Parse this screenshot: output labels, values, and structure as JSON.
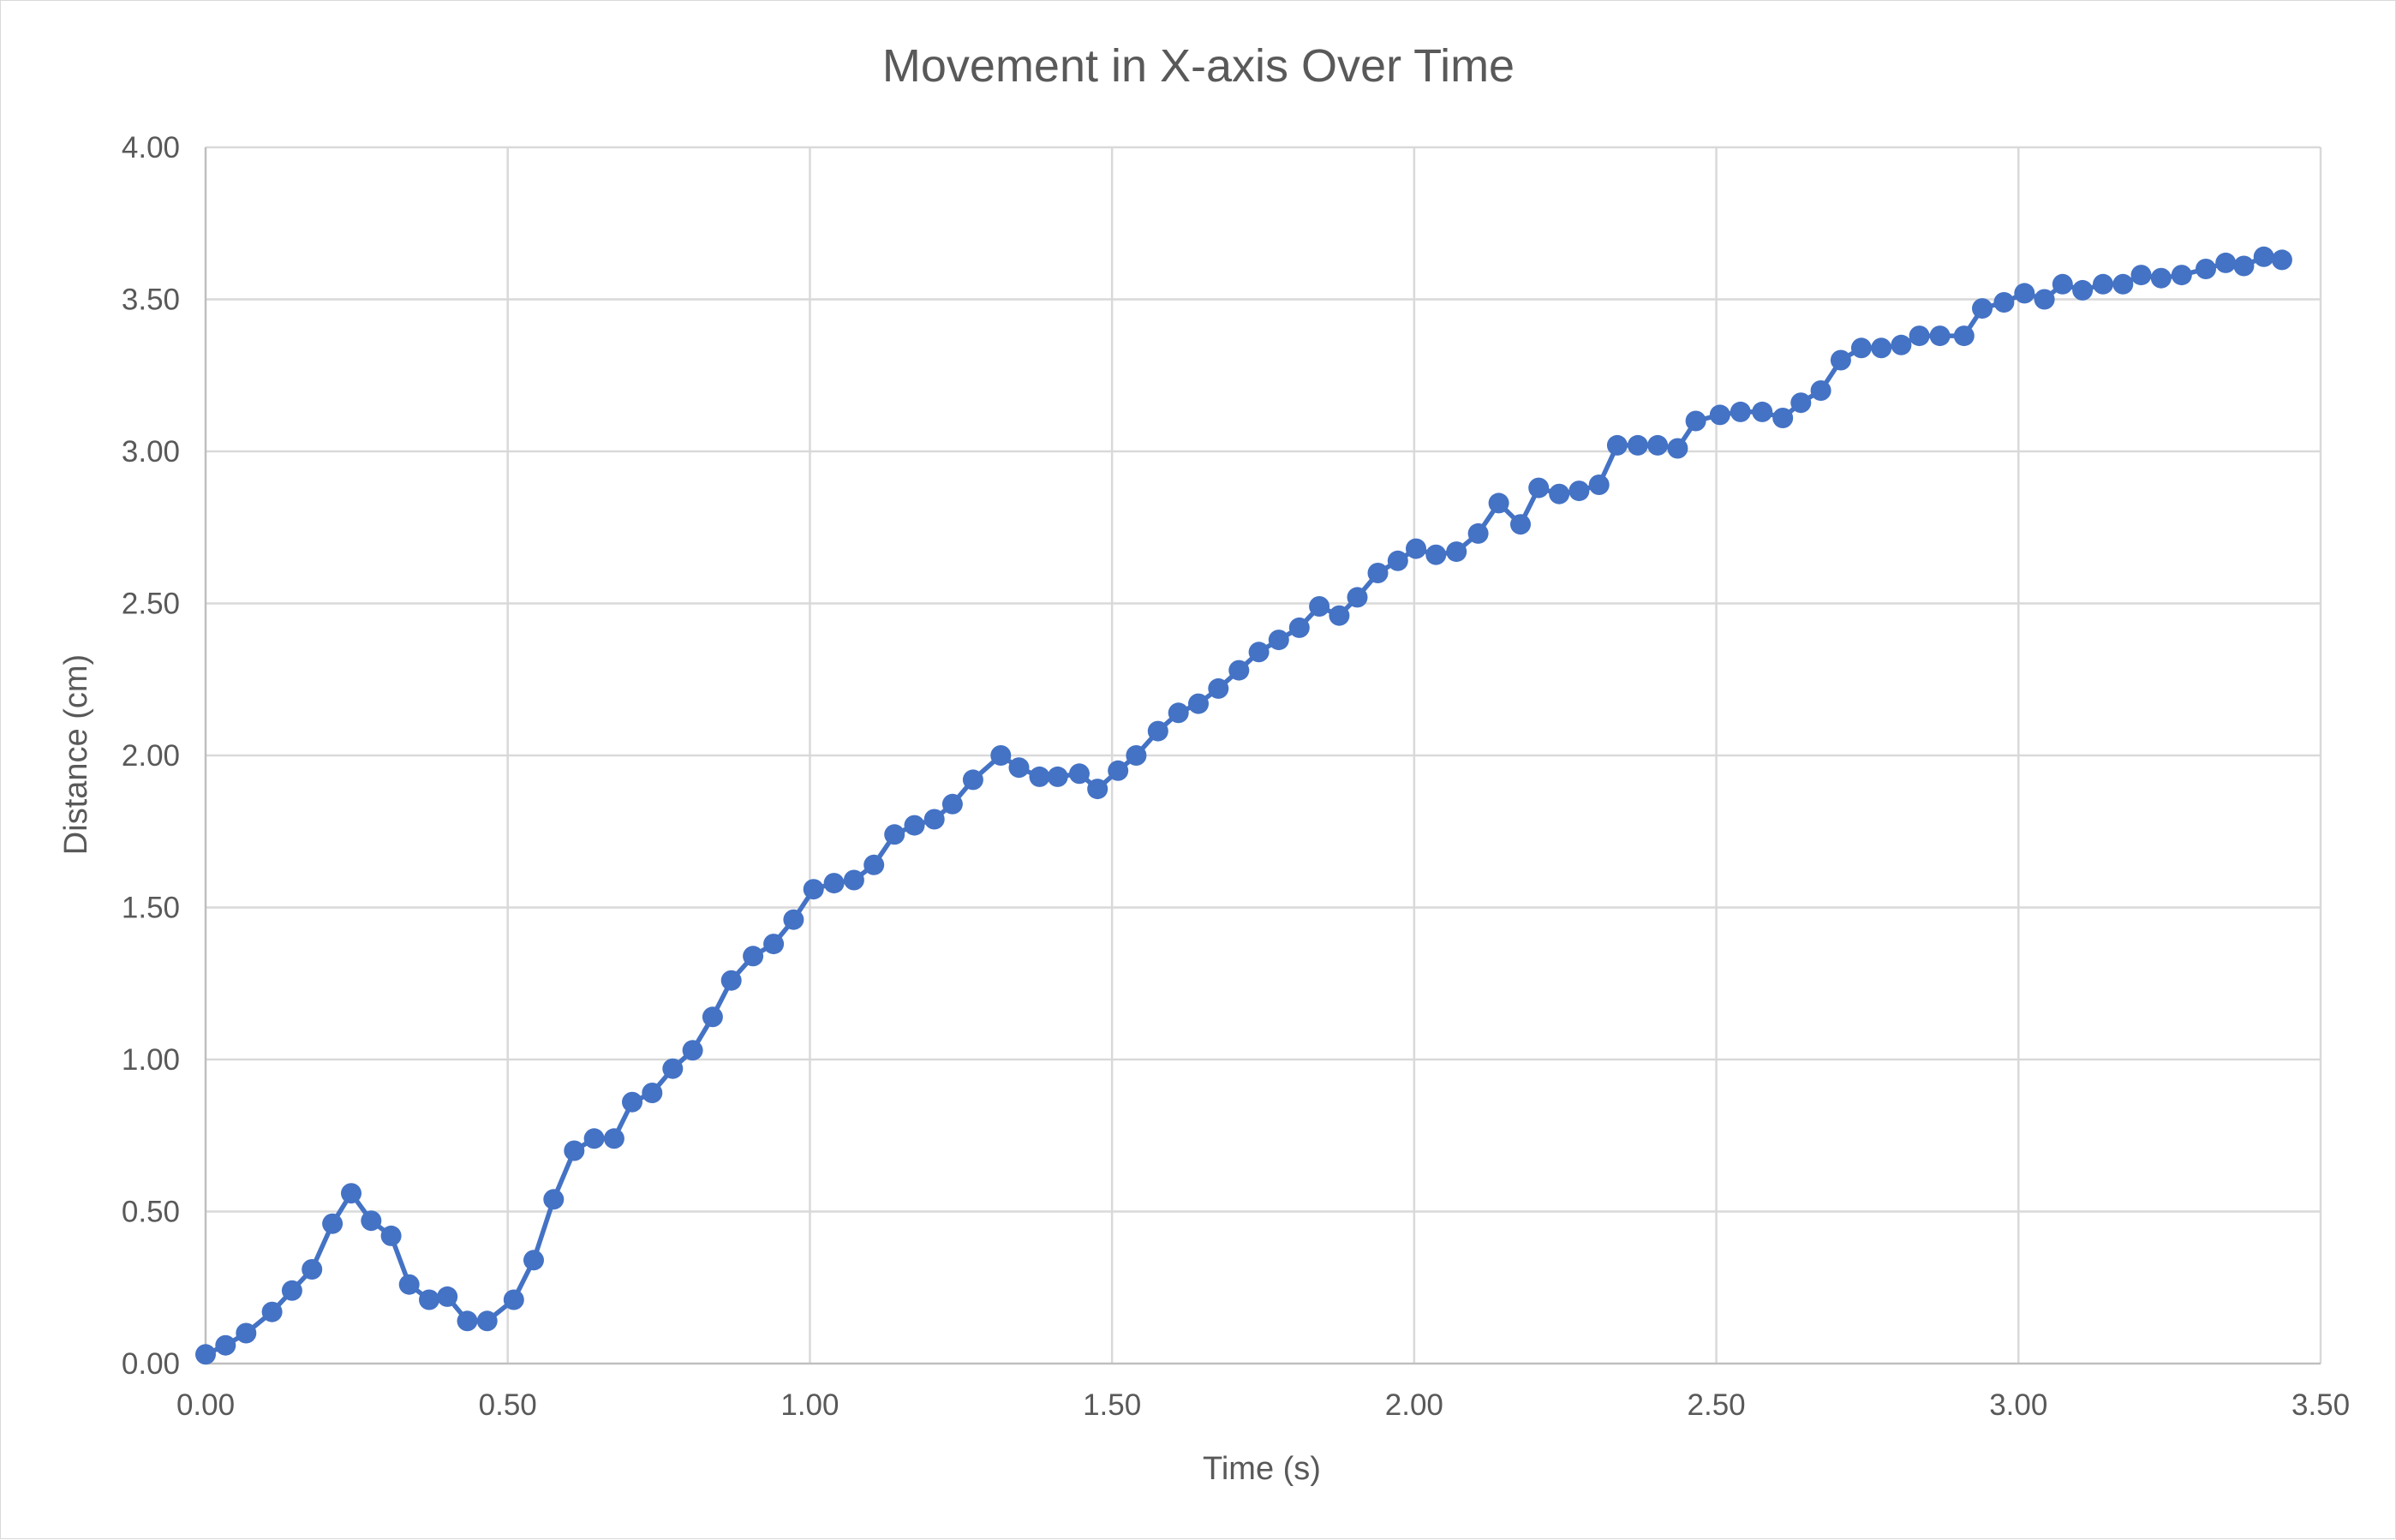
{
  "chart_data": {
    "type": "line",
    "title": "Movement in X-axis Over Time",
    "xlabel": "Time (s)",
    "ylabel": "Distance (cm)",
    "xlim": [
      0,
      3.5
    ],
    "ylim": [
      0,
      4
    ],
    "x_ticks": [
      "0.00",
      "0.50",
      "1.00",
      "1.50",
      "2.00",
      "2.50",
      "3.00",
      "3.50"
    ],
    "y_ticks": [
      "0.00",
      "0.50",
      "1.00",
      "1.50",
      "2.00",
      "2.50",
      "3.00",
      "3.50",
      "4.00"
    ],
    "grid": true,
    "legend": "none",
    "markers": true,
    "color": "#4472c4",
    "x": [
      0.0,
      0.033,
      0.067,
      0.11,
      0.143,
      0.176,
      0.21,
      0.241,
      0.274,
      0.307,
      0.337,
      0.37,
      0.4,
      0.433,
      0.466,
      0.51,
      0.543,
      0.576,
      0.61,
      0.643,
      0.676,
      0.706,
      0.739,
      0.773,
      0.806,
      0.839,
      0.87,
      0.906,
      0.94,
      0.973,
      1.006,
      1.04,
      1.073,
      1.106,
      1.14,
      1.173,
      1.206,
      1.236,
      1.27,
      1.316,
      1.346,
      1.38,
      1.41,
      1.446,
      1.476,
      1.51,
      1.54,
      1.576,
      1.61,
      1.643,
      1.676,
      1.71,
      1.743,
      1.776,
      1.81,
      1.843,
      1.876,
      1.906,
      1.94,
      1.973,
      2.003,
      2.036,
      2.07,
      2.106,
      2.14,
      2.176,
      2.206,
      2.24,
      2.273,
      2.306,
      2.336,
      2.37,
      2.403,
      2.436,
      2.466,
      2.506,
      2.54,
      2.576,
      2.61,
      2.64,
      2.673,
      2.706,
      2.74,
      2.773,
      2.806,
      2.836,
      2.87,
      2.91,
      2.94,
      2.976,
      3.01,
      3.043,
      3.073,
      3.106,
      3.14,
      3.173,
      3.203,
      3.236,
      3.27,
      3.31,
      3.343,
      3.373,
      3.406,
      3.436
    ],
    "y": [
      0.03,
      0.06,
      0.1,
      0.17,
      0.24,
      0.31,
      0.46,
      0.56,
      0.47,
      0.42,
      0.26,
      0.21,
      0.22,
      0.14,
      0.14,
      0.21,
      0.34,
      0.54,
      0.7,
      0.74,
      0.74,
      0.86,
      0.89,
      0.97,
      1.03,
      1.14,
      1.26,
      1.34,
      1.38,
      1.46,
      1.56,
      1.58,
      1.59,
      1.64,
      1.74,
      1.77,
      1.79,
      1.84,
      1.92,
      2.0,
      1.96,
      1.93,
      1.93,
      1.94,
      1.89,
      1.95,
      2.0,
      2.08,
      2.14,
      2.17,
      2.22,
      2.28,
      2.34,
      2.38,
      2.42,
      2.49,
      2.46,
      2.52,
      2.6,
      2.64,
      2.68,
      2.66,
      2.67,
      2.73,
      2.83,
      2.76,
      2.88,
      2.86,
      2.87,
      2.89,
      3.02,
      3.02,
      3.02,
      3.01,
      3.1,
      3.12,
      3.13,
      3.13,
      3.11,
      3.16,
      3.2,
      3.3,
      3.34,
      3.34,
      3.35,
      3.38,
      3.38,
      3.38,
      3.47,
      3.49,
      3.52,
      3.5,
      3.55,
      3.53,
      3.55,
      3.55,
      3.58,
      3.57,
      3.58,
      3.6,
      3.62,
      3.61,
      3.64,
      3.63
    ]
  }
}
